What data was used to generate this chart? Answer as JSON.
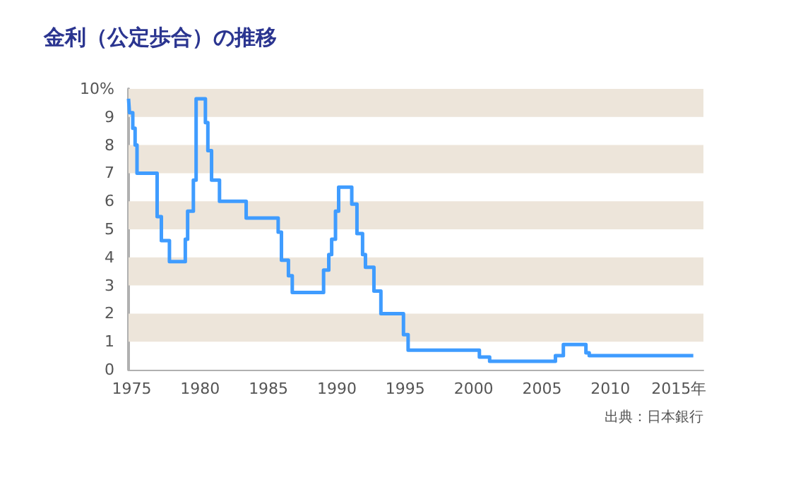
{
  "chart_data": {
    "type": "step",
    "title": "金利（公定歩合）の推移",
    "annotations": [
      "出典：日本銀行"
    ],
    "x": [
      1974.77,
      1974.84,
      1975.08,
      1975.25,
      1975.39,
      1976.86,
      1977.17,
      1977.76,
      1978.92,
      1979.09,
      1979.51,
      1979.71,
      1980.39,
      1980.57,
      1980.84,
      1981.42,
      1983.37,
      1985.71,
      1985.95,
      1986.46,
      1986.74,
      1989.03,
      1989.41,
      1989.62,
      1989.9,
      1990.13,
      1991.09,
      1991.47,
      1991.88,
      1992.09,
      1992.71,
      1993.22,
      1994.87,
      1995.21,
      2000.42,
      2001.17,
      2005.98,
      2006.56,
      2008.21,
      2008.45,
      2016.06
    ],
    "series": [
      {
        "color": "#3f9cff",
        "values": [
          9.65,
          9.15,
          8.6,
          8.0,
          7.0,
          5.45,
          4.6,
          3.85,
          4.65,
          5.65,
          6.75,
          9.65,
          8.8,
          7.8,
          6.75,
          6.0,
          5.4,
          4.9,
          3.9,
          3.35,
          2.75,
          3.55,
          4.1,
          4.65,
          5.65,
          6.5,
          5.9,
          4.85,
          4.1,
          3.65,
          2.8,
          2.0,
          1.25,
          0.7,
          0.45,
          0.3,
          0.5,
          0.9,
          0.6,
          0.5,
          0.5
        ]
      }
    ],
    "xlim": [
      1974.77,
      2016.8
    ],
    "xticks": [
      1975,
      1980,
      1985,
      1990,
      1995,
      2000,
      2005,
      2010,
      {
        "value": 2015,
        "label": "2015年"
      }
    ],
    "ylim": [
      0,
      10
    ],
    "yticks": [
      0,
      1,
      2,
      3,
      4,
      5,
      6,
      7,
      8,
      9,
      {
        "value": 10,
        "label": "10%"
      }
    ],
    "bands": [
      {
        "axis": "y",
        "from": 1,
        "to": 2,
        "color": "#ede5da"
      },
      {
        "axis": "y",
        "from": 3,
        "to": 4,
        "color": "#ede5da"
      },
      {
        "axis": "y",
        "from": 5,
        "to": 6,
        "color": "#ede5da"
      },
      {
        "axis": "y",
        "from": 7,
        "to": 8,
        "color": "#ede5da"
      },
      {
        "axis": "y",
        "from": 9,
        "to": 10,
        "color": "#ede5da"
      }
    ],
    "grid": false,
    "marker": "none",
    "line_style": "solid"
  }
}
